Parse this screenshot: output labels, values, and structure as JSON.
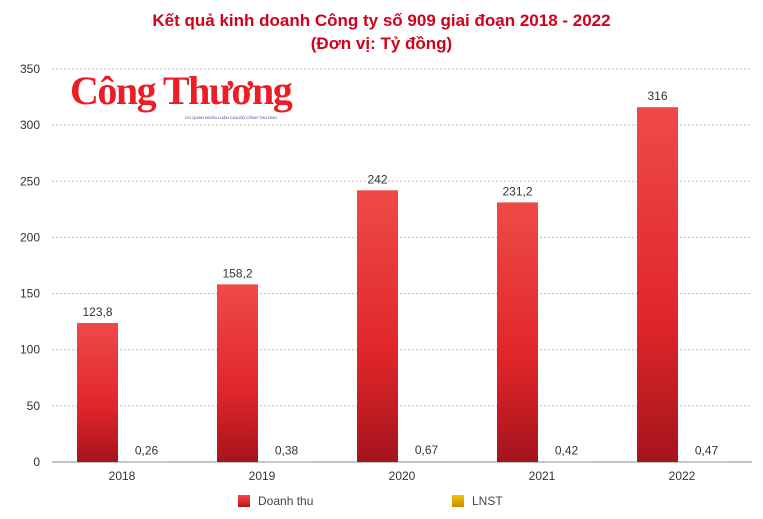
{
  "chart_data": {
    "type": "bar",
    "title": "Kết quả kinh doanh Công ty số 909 giai đoạn 2018 - 2022",
    "subtitle": "(Đơn vị: Tỷ đồng)",
    "categories": [
      "2018",
      "2019",
      "2020",
      "2021",
      "2022"
    ],
    "series": [
      {
        "name": "Doanh thu",
        "values": [
          123.8,
          158.2,
          242,
          231.2,
          316
        ],
        "labels": [
          "123,8",
          "158,2",
          "242",
          "231,2",
          "316"
        ],
        "color": "#e63234"
      },
      {
        "name": "LNST",
        "values": [
          0.26,
          0.38,
          0.67,
          0.42,
          0.47
        ],
        "labels": [
          "0,26",
          "0,38",
          "0,67",
          "0,42",
          "0,47"
        ],
        "color": "#e8b800"
      }
    ],
    "yticks": [
      "0",
      "50",
      "100",
      "150",
      "200",
      "250",
      "300",
      "350"
    ],
    "ylim": [
      0,
      350
    ],
    "grid": true,
    "legend": "bottom"
  },
  "logo": {
    "name": "Công Thương",
    "tagline": "CƠ QUAN NGÔN LUẬN CỦA BỘ CÔNG THƯƠNG"
  }
}
